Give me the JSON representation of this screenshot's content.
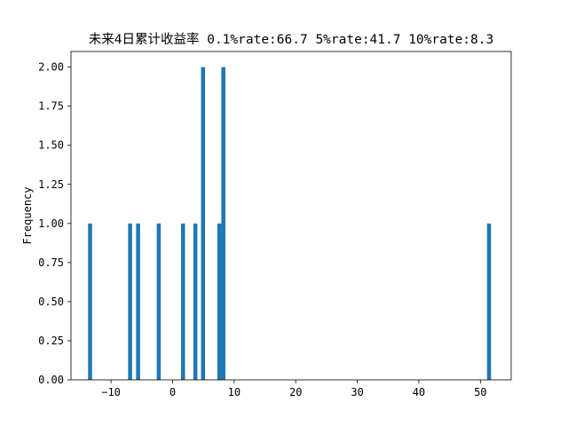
{
  "chart_data": {
    "type": "bar",
    "title": "未来4日累计收益率 0.1%rate:66.7 5%rate:41.7 10%rate:8.3",
    "xlabel": "",
    "ylabel": "Frequency",
    "xlim": [
      -16.5,
      55
    ],
    "ylim": [
      0,
      2.1
    ],
    "grid": false,
    "bar_color": "#1f77b4",
    "bin_width": 0.65,
    "bins": [
      {
        "x": -13.4,
        "count": 1
      },
      {
        "x": -6.9,
        "count": 1
      },
      {
        "x": -5.6,
        "count": 1
      },
      {
        "x": -2.25,
        "count": 1
      },
      {
        "x": 1.7,
        "count": 1
      },
      {
        "x": 3.7,
        "count": 1
      },
      {
        "x": 4.95,
        "count": 2
      },
      {
        "x": 7.6,
        "count": 1
      },
      {
        "x": 8.25,
        "count": 2
      },
      {
        "x": 51.4,
        "count": 1
      }
    ],
    "xticks": [
      -10,
      0,
      10,
      20,
      30,
      40,
      50
    ],
    "xtick_labels": [
      "−10",
      "0",
      "10",
      "20",
      "30",
      "40",
      "50"
    ],
    "yticks": [
      0,
      0.25,
      0.5,
      0.75,
      1.0,
      1.25,
      1.5,
      1.75,
      2.0
    ],
    "ytick_labels": [
      "0.00",
      "0.25",
      "0.50",
      "0.75",
      "1.00",
      "1.25",
      "1.50",
      "1.75",
      "2.00"
    ]
  }
}
